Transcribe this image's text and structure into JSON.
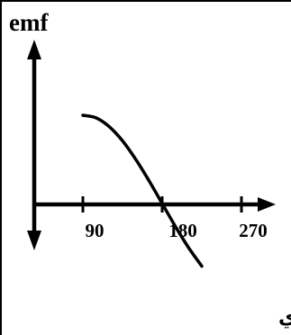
{
  "y_axis_label": "emf",
  "x_ticks": [
    {
      "label": "90",
      "angle": 90
    },
    {
      "label": "180",
      "angle": 180
    },
    {
      "label": "270",
      "angle": 270
    }
  ],
  "caption": "من الوضع الموازي",
  "chart_data": {
    "type": "line",
    "ylabel": "emf",
    "xlabel": "",
    "x_ticks": [
      90,
      180,
      270
    ],
    "series": [
      {
        "x": [
          90,
          105,
          120,
          135,
          150,
          165,
          180,
          195,
          210,
          225
        ],
        "y": [
          1.0,
          0.97,
          0.87,
          0.71,
          0.5,
          0.26,
          0.0,
          -0.26,
          -0.5,
          -0.71
        ]
      }
    ]
  }
}
